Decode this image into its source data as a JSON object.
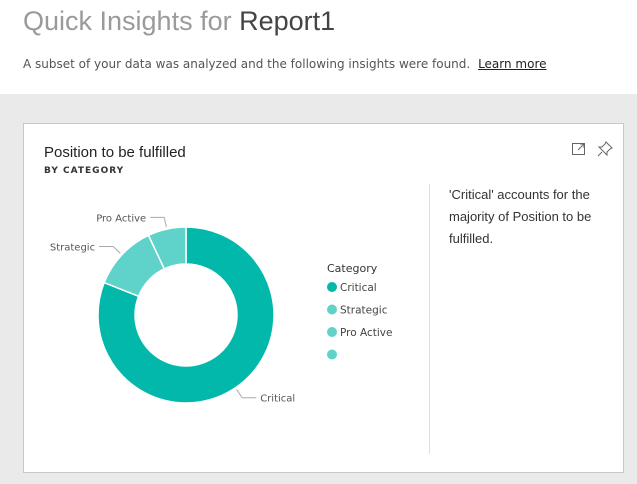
{
  "header": {
    "title_prefix": "Quick Insights for",
    "title_report": "Report1",
    "subtitle": "A subset of your data was analyzed and the following insights were found.",
    "learn_more": "Learn more"
  },
  "card": {
    "title": "Position to be fulfilled",
    "subtitle": "BY CATEGORY",
    "insight_text": "'Critical' accounts for the majority of Position to be fulfilled.",
    "icons": [
      "expand-icon",
      "pin-icon"
    ]
  },
  "chart_data": {
    "type": "pie",
    "donut": true,
    "legend_title": "Category",
    "legend_position": "right",
    "slices": [
      {
        "label": "Critical",
        "value": 81,
        "color": "#01b8aa"
      },
      {
        "label": "Strategic",
        "value": 12,
        "color": "#5fd3c9"
      },
      {
        "label": "Pro Active",
        "value": 7,
        "color": "#5fd3c9"
      },
      {
        "label": "",
        "value": 0,
        "color": "#5fd3c9"
      }
    ]
  }
}
